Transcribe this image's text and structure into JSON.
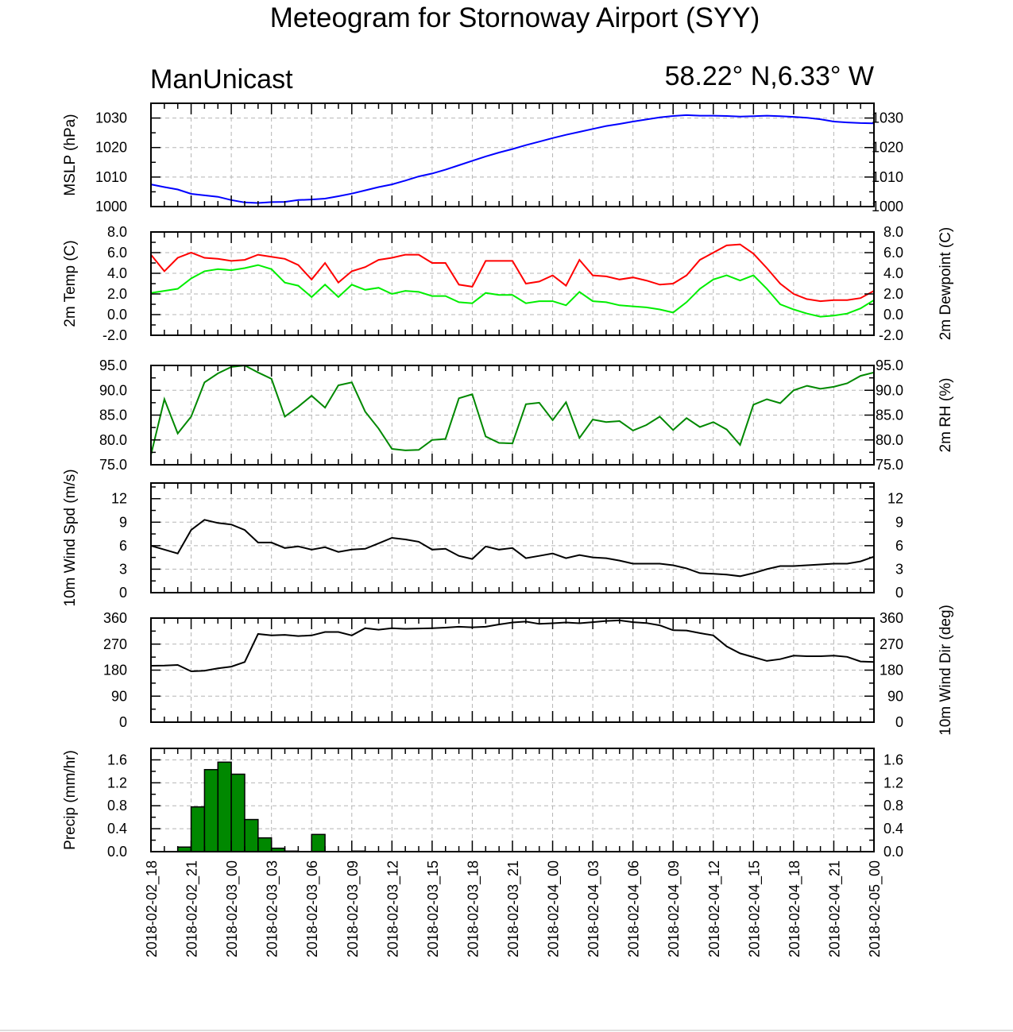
{
  "title": "Meteogram for Stornoway Airport (SYY)",
  "model": "ManUnicast",
  "location": "58.22° N,6.33° W",
  "x_labels": [
    "2018-02-02_18",
    "2018-02-02_21",
    "2018-02-03_00",
    "2018-02-03_03",
    "2018-02-03_06",
    "2018-02-03_09",
    "2018-02-03_12",
    "2018-02-03_15",
    "2018-02-03_18",
    "2018-02-03_21",
    "2018-02-04_00",
    "2018-02-04_03",
    "2018-02-04_06",
    "2018-02-04_09",
    "2018-02-04_12",
    "2018-02-04_15",
    "2018-02-04_18",
    "2018-02-04_21",
    "2018-02-05_00"
  ],
  "colors": {
    "mslp": "#0000ff",
    "temp": "#ff0000",
    "dewpoint": "#00ee00",
    "rh": "#008800",
    "wind": "#000000",
    "precip_fill": "#008800"
  },
  "chart_data": [
    {
      "id": "mslp",
      "type": "line",
      "ylabel_left": "MSLP (hPa)",
      "ylabel_right": "",
      "ylim": [
        1000,
        1035
      ],
      "yticks": [
        1000,
        1010,
        1020,
        1030
      ],
      "tick_labels_right": true,
      "grid": true,
      "x_hours": [
        0,
        1,
        2,
        3,
        4,
        5,
        6,
        7,
        8,
        9,
        10,
        11,
        12,
        13,
        14,
        15,
        16,
        17,
        18,
        19,
        20,
        21,
        22,
        23,
        24,
        25,
        26,
        27,
        28,
        29,
        30,
        31,
        32,
        33,
        34,
        35,
        36,
        37,
        38,
        39,
        40,
        41,
        42,
        43,
        44,
        45,
        46,
        47,
        48,
        49,
        50,
        51,
        52,
        53,
        54
      ],
      "series": [
        {
          "color": "#0000ff",
          "values": [
            1007.5,
            1006.6,
            1005.8,
            1004.3,
            1003.8,
            1003.3,
            1002.2,
            1001.4,
            1001.2,
            1001.5,
            1001.6,
            1002.2,
            1002.4,
            1002.7,
            1003.5,
            1004.4,
            1005.5,
            1006.6,
            1007.5,
            1008.8,
            1010.2,
            1011.2,
            1012.5,
            1014.0,
            1015.5,
            1017.0,
            1018.3,
            1019.5,
            1020.8,
            1022.0,
            1023.2,
            1024.3,
            1025.3,
            1026.3,
            1027.3,
            1028.0,
            1028.8,
            1029.5,
            1030.2,
            1030.7,
            1031.0,
            1030.8,
            1030.8,
            1030.7,
            1030.5,
            1030.6,
            1030.8,
            1030.6,
            1030.4,
            1030.1,
            1029.6,
            1028.8,
            1028.5,
            1028.3,
            1028.2
          ]
        }
      ]
    },
    {
      "id": "temp",
      "type": "line",
      "ylabel_left": "2m Temp (C)",
      "ylabel_right": "2m Dewpoint (C)",
      "ylim": [
        -2,
        8
      ],
      "yticks": [
        -2.0,
        0.0,
        2.0,
        4.0,
        6.0,
        8.0
      ],
      "tick_labels_right": true,
      "grid": true,
      "x_hours": [
        0,
        1,
        2,
        3,
        4,
        5,
        6,
        7,
        8,
        9,
        10,
        11,
        12,
        13,
        14,
        15,
        16,
        17,
        18,
        19,
        20,
        21,
        22,
        23,
        24,
        25,
        26,
        27,
        28,
        29,
        30,
        31,
        32,
        33,
        34,
        35,
        36,
        37,
        38,
        39,
        40,
        41,
        42,
        43,
        44,
        45,
        46,
        47,
        48,
        49,
        50,
        51,
        52,
        53,
        54
      ],
      "series": [
        {
          "color": "#ff0000",
          "values": [
            5.8,
            4.2,
            5.5,
            6.0,
            5.5,
            5.4,
            5.2,
            5.3,
            5.8,
            5.6,
            5.4,
            4.8,
            3.4,
            5.0,
            3.1,
            4.2,
            4.6,
            5.3,
            5.5,
            5.8,
            5.8,
            5.0,
            5.0,
            2.9,
            2.7,
            5.2,
            5.2,
            5.2,
            3.0,
            3.2,
            3.8,
            2.8,
            5.3,
            3.8,
            3.7,
            3.4,
            3.6,
            3.3,
            2.9,
            3.0,
            3.8,
            5.3,
            6.0,
            6.7,
            6.8,
            5.9,
            4.5,
            3.0,
            2.0,
            1.5,
            1.3,
            1.4,
            1.4,
            1.6,
            2.3
          ]
        },
        {
          "color": "#00ee00",
          "values": [
            2.1,
            2.3,
            2.5,
            3.5,
            4.2,
            4.4,
            4.3,
            4.5,
            4.8,
            4.4,
            3.1,
            2.8,
            1.7,
            2.9,
            1.7,
            2.9,
            2.4,
            2.6,
            2.0,
            2.3,
            2.2,
            1.8,
            1.8,
            1.2,
            1.1,
            2.1,
            1.9,
            1.9,
            1.1,
            1.3,
            1.3,
            0.9,
            2.2,
            1.3,
            1.2,
            0.9,
            0.8,
            0.7,
            0.5,
            0.2,
            1.2,
            2.5,
            3.4,
            3.8,
            3.3,
            3.8,
            2.5,
            1.0,
            0.5,
            0.1,
            -0.2,
            -0.1,
            0.1,
            0.6,
            1.4
          ]
        }
      ]
    },
    {
      "id": "rh",
      "type": "line",
      "ylabel_left": "",
      "ylabel_right": "2m RH (%)",
      "ylim": [
        75,
        95
      ],
      "yticks": [
        75.0,
        80.0,
        85.0,
        90.0,
        95.0
      ],
      "tick_labels_right": true,
      "grid": true,
      "x_hours": [
        0,
        1,
        2,
        3,
        4,
        5,
        6,
        7,
        8,
        9,
        10,
        11,
        12,
        13,
        14,
        15,
        16,
        17,
        18,
        19,
        20,
        21,
        22,
        23,
        24,
        25,
        26,
        27,
        28,
        29,
        30,
        31,
        32,
        33,
        34,
        35,
        36,
        37,
        38,
        39,
        40,
        41,
        42,
        43,
        44,
        45,
        46,
        47,
        48,
        49,
        50,
        51,
        52,
        53,
        54
      ],
      "series": [
        {
          "color": "#008800",
          "values": [
            77.0,
            88.2,
            81.3,
            84.7,
            91.6,
            93.4,
            94.7,
            95.0,
            93.6,
            92.3,
            84.7,
            86.7,
            88.9,
            86.5,
            91.0,
            91.6,
            85.7,
            82.3,
            78.2,
            77.9,
            78.0,
            80.0,
            80.2,
            88.4,
            89.2,
            80.7,
            79.4,
            79.3,
            87.2,
            87.5,
            84.0,
            87.6,
            80.4,
            84.1,
            83.6,
            83.8,
            81.9,
            83.0,
            84.7,
            82.0,
            84.4,
            82.6,
            83.6,
            82.1,
            79.0,
            87.1,
            88.2,
            87.4,
            90.0,
            90.9,
            90.3,
            90.7,
            91.4,
            92.9,
            93.6
          ]
        }
      ]
    },
    {
      "id": "wind_speed",
      "type": "line",
      "ylabel_left": "10m Wind Spd (m/s)",
      "ylabel_right": "",
      "ylim": [
        0,
        14
      ],
      "yticks": [
        0,
        3,
        6,
        9,
        12
      ],
      "tick_labels_right": true,
      "grid": true,
      "x_hours": [
        0,
        1,
        2,
        3,
        4,
        5,
        6,
        7,
        8,
        9,
        10,
        11,
        12,
        13,
        14,
        15,
        16,
        17,
        18,
        19,
        20,
        21,
        22,
        23,
        24,
        25,
        26,
        27,
        28,
        29,
        30,
        31,
        32,
        33,
        34,
        35,
        36,
        37,
        38,
        39,
        40,
        41,
        42,
        43,
        44,
        45,
        46,
        47,
        48,
        49,
        50,
        51,
        52,
        53,
        54
      ],
      "series": [
        {
          "color": "#000000",
          "values": [
            6.0,
            5.5,
            5.0,
            8.0,
            9.3,
            8.9,
            8.7,
            8.0,
            6.4,
            6.4,
            5.7,
            5.9,
            5.5,
            5.8,
            5.2,
            5.5,
            5.6,
            6.3,
            7.0,
            6.8,
            6.5,
            5.5,
            5.6,
            4.7,
            4.3,
            5.9,
            5.5,
            5.7,
            4.4,
            4.7,
            5.0,
            4.4,
            4.8,
            4.5,
            4.4,
            4.1,
            3.7,
            3.7,
            3.7,
            3.5,
            3.1,
            2.5,
            2.4,
            2.3,
            2.1,
            2.5,
            3.0,
            3.4,
            3.4,
            3.5,
            3.6,
            3.7,
            3.7,
            4.0,
            4.6
          ]
        }
      ]
    },
    {
      "id": "wind_dir",
      "type": "line",
      "ylabel_left": "",
      "ylabel_right": "10m Wind Dir (deg)",
      "ylim": [
        0,
        360
      ],
      "yticks": [
        0,
        90,
        180,
        270,
        360
      ],
      "tick_labels_right": true,
      "grid": true,
      "x_hours": [
        0,
        1,
        2,
        3,
        4,
        5,
        6,
        7,
        8,
        9,
        10,
        11,
        12,
        13,
        14,
        15,
        16,
        17,
        18,
        19,
        20,
        21,
        22,
        23,
        24,
        25,
        26,
        27,
        28,
        29,
        30,
        31,
        32,
        33,
        34,
        35,
        36,
        37,
        38,
        39,
        40,
        41,
        42,
        43,
        44,
        45,
        46,
        47,
        48,
        49,
        50,
        51,
        52,
        53,
        54
      ],
      "series": [
        {
          "color": "#000000",
          "values": [
            195,
            196,
            198,
            176,
            178,
            186,
            192,
            208,
            305,
            300,
            302,
            298,
            300,
            312,
            312,
            300,
            325,
            320,
            325,
            323,
            324,
            325,
            327,
            330,
            328,
            330,
            338,
            345,
            348,
            340,
            342,
            345,
            342,
            346,
            350,
            352,
            346,
            343,
            335,
            318,
            317,
            308,
            300,
            262,
            238,
            225,
            212,
            218,
            230,
            228,
            228,
            230,
            226,
            210,
            208
          ]
        }
      ]
    },
    {
      "id": "precip",
      "type": "bar",
      "ylabel_left": "Precip (mm/hr)",
      "ylabel_right": "",
      "ylim": [
        0,
        1.8
      ],
      "yticks": [
        0.0,
        0.4,
        0.8,
        1.2,
        1.6
      ],
      "tick_labels_right": true,
      "grid": true,
      "x_hours": [
        0,
        1,
        2,
        3,
        4,
        5,
        6,
        7,
        8,
        9,
        10,
        11,
        12,
        13,
        14,
        15,
        16,
        17,
        18,
        19,
        20,
        21,
        22,
        23,
        24,
        25,
        26,
        27,
        28,
        29,
        30,
        31,
        32,
        33,
        34,
        35,
        36,
        37,
        38,
        39,
        40,
        41,
        42,
        43,
        44,
        45,
        46,
        47,
        48,
        49,
        50,
        51,
        52,
        53
      ],
      "series": [
        {
          "color": "#008800",
          "values": [
            0,
            0,
            0.08,
            0.78,
            1.43,
            1.56,
            1.35,
            0.56,
            0.24,
            0.06,
            0.01,
            0,
            0.3,
            0,
            0,
            0.01,
            0,
            0,
            0,
            0,
            0,
            0,
            0,
            0,
            0,
            0,
            0,
            0,
            0,
            0,
            0,
            0,
            0,
            0,
            0,
            0,
            0,
            0,
            0,
            0,
            0,
            0,
            0,
            0,
            0,
            0,
            0,
            0,
            0,
            0,
            0,
            0,
            0,
            0
          ]
        }
      ]
    }
  ]
}
